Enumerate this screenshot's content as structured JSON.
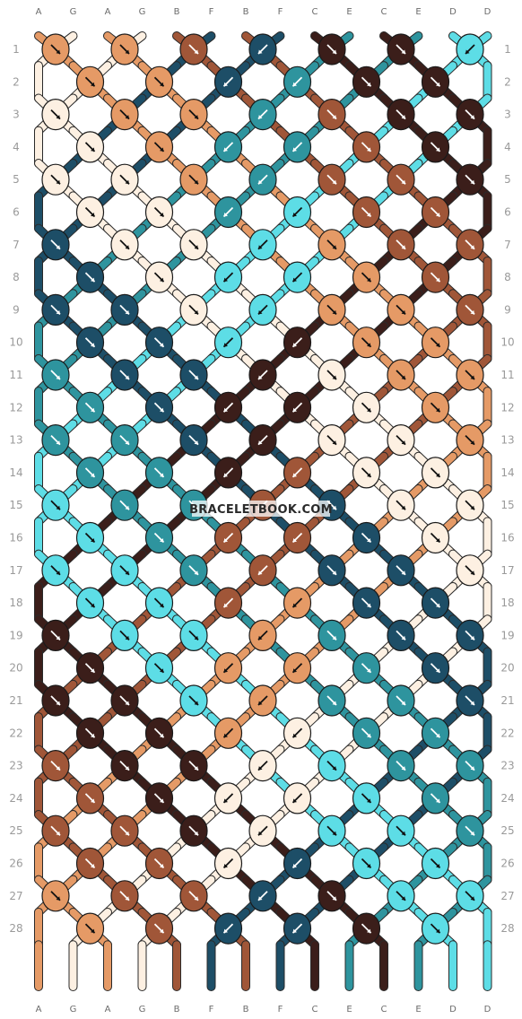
{
  "watermark": "BRACELETBOOK.COM",
  "colors": {
    "A": "#e59a66",
    "G": "#fdf0e2",
    "B": "#a05638",
    "F": "#1d4e67",
    "C": "#3b1e1a",
    "E": "#2e949e",
    "D": "#5ddde6"
  },
  "strands_top": [
    "A",
    "G",
    "A",
    "G",
    "B",
    "F",
    "B",
    "F",
    "C",
    "E",
    "C",
    "E",
    "D",
    "D"
  ],
  "strands_bottom": [
    "A",
    "G",
    "A",
    "G",
    "B",
    "F",
    "B",
    "F",
    "C",
    "E",
    "C",
    "E",
    "D",
    "D"
  ],
  "row_numbers": [
    "1",
    "2",
    "3",
    "4",
    "5",
    "6",
    "7",
    "8",
    "9",
    "10",
    "11",
    "12",
    "13",
    "14",
    "15",
    "16",
    "17",
    "18",
    "19",
    "20",
    "21",
    "22",
    "23",
    "24",
    "25",
    "26",
    "27",
    "28"
  ],
  "knot_rows": [
    [
      [
        "A",
        "r"
      ],
      [
        "A",
        "r"
      ],
      [
        "B",
        "r"
      ],
      [
        "F",
        "l"
      ],
      [
        "C",
        "r"
      ],
      [
        "C",
        "r"
      ],
      [
        "D",
        "l"
      ]
    ],
    [
      [
        "A",
        "r"
      ],
      [
        "A",
        "r"
      ],
      [
        "F",
        "l"
      ],
      [
        "E",
        "l"
      ],
      [
        "C",
        "r"
      ],
      [
        "C",
        "r"
      ]
    ],
    [
      [
        "G",
        "r"
      ],
      [
        "A",
        "r"
      ],
      [
        "A",
        "r"
      ],
      [
        "E",
        "l"
      ],
      [
        "B",
        "r"
      ],
      [
        "C",
        "r"
      ],
      [
        "C",
        "r"
      ]
    ],
    [
      [
        "G",
        "r"
      ],
      [
        "A",
        "r"
      ],
      [
        "E",
        "l"
      ],
      [
        "E",
        "l"
      ],
      [
        "B",
        "r"
      ],
      [
        "C",
        "r"
      ]
    ],
    [
      [
        "G",
        "r"
      ],
      [
        "G",
        "r"
      ],
      [
        "A",
        "r"
      ],
      [
        "E",
        "l"
      ],
      [
        "B",
        "r"
      ],
      [
        "B",
        "r"
      ],
      [
        "C",
        "r"
      ]
    ],
    [
      [
        "G",
        "r"
      ],
      [
        "G",
        "r"
      ],
      [
        "E",
        "l"
      ],
      [
        "D",
        "l"
      ],
      [
        "B",
        "r"
      ],
      [
        "B",
        "r"
      ]
    ],
    [
      [
        "F",
        "r"
      ],
      [
        "G",
        "r"
      ],
      [
        "G",
        "r"
      ],
      [
        "D",
        "l"
      ],
      [
        "A",
        "r"
      ],
      [
        "B",
        "r"
      ],
      [
        "B",
        "r"
      ]
    ],
    [
      [
        "F",
        "r"
      ],
      [
        "G",
        "r"
      ],
      [
        "D",
        "l"
      ],
      [
        "D",
        "l"
      ],
      [
        "A",
        "r"
      ],
      [
        "B",
        "r"
      ]
    ],
    [
      [
        "F",
        "r"
      ],
      [
        "F",
        "r"
      ],
      [
        "G",
        "r"
      ],
      [
        "D",
        "l"
      ],
      [
        "A",
        "r"
      ],
      [
        "A",
        "r"
      ],
      [
        "B",
        "r"
      ]
    ],
    [
      [
        "F",
        "r"
      ],
      [
        "F",
        "r"
      ],
      [
        "D",
        "l"
      ],
      [
        "C",
        "l"
      ],
      [
        "A",
        "r"
      ],
      [
        "A",
        "r"
      ]
    ],
    [
      [
        "E",
        "r"
      ],
      [
        "F",
        "r"
      ],
      [
        "F",
        "r"
      ],
      [
        "C",
        "l"
      ],
      [
        "G",
        "r"
      ],
      [
        "A",
        "r"
      ],
      [
        "A",
        "r"
      ]
    ],
    [
      [
        "E",
        "r"
      ],
      [
        "F",
        "r"
      ],
      [
        "C",
        "l"
      ],
      [
        "C",
        "l"
      ],
      [
        "G",
        "r"
      ],
      [
        "A",
        "r"
      ]
    ],
    [
      [
        "E",
        "r"
      ],
      [
        "E",
        "r"
      ],
      [
        "F",
        "r"
      ],
      [
        "C",
        "l"
      ],
      [
        "G",
        "r"
      ],
      [
        "G",
        "r"
      ],
      [
        "A",
        "r"
      ]
    ],
    [
      [
        "E",
        "r"
      ],
      [
        "E",
        "r"
      ],
      [
        "C",
        "l"
      ],
      [
        "B",
        "l"
      ],
      [
        "G",
        "r"
      ],
      [
        "G",
        "r"
      ]
    ],
    [
      [
        "D",
        "r"
      ],
      [
        "E",
        "r"
      ],
      [
        "E",
        "r"
      ],
      [
        "B",
        "l"
      ],
      [
        "F",
        "r"
      ],
      [
        "G",
        "r"
      ],
      [
        "G",
        "r"
      ]
    ],
    [
      [
        "D",
        "r"
      ],
      [
        "E",
        "r"
      ],
      [
        "B",
        "l"
      ],
      [
        "B",
        "l"
      ],
      [
        "F",
        "r"
      ],
      [
        "G",
        "r"
      ]
    ],
    [
      [
        "D",
        "r"
      ],
      [
        "D",
        "r"
      ],
      [
        "E",
        "r"
      ],
      [
        "B",
        "l"
      ],
      [
        "F",
        "r"
      ],
      [
        "F",
        "r"
      ],
      [
        "G",
        "r"
      ]
    ],
    [
      [
        "D",
        "r"
      ],
      [
        "D",
        "r"
      ],
      [
        "B",
        "l"
      ],
      [
        "A",
        "l"
      ],
      [
        "F",
        "r"
      ],
      [
        "F",
        "r"
      ]
    ],
    [
      [
        "C",
        "r"
      ],
      [
        "D",
        "r"
      ],
      [
        "D",
        "r"
      ],
      [
        "A",
        "l"
      ],
      [
        "E",
        "r"
      ],
      [
        "F",
        "r"
      ],
      [
        "F",
        "r"
      ]
    ],
    [
      [
        "C",
        "r"
      ],
      [
        "D",
        "r"
      ],
      [
        "A",
        "l"
      ],
      [
        "A",
        "l"
      ],
      [
        "E",
        "r"
      ],
      [
        "F",
        "r"
      ]
    ],
    [
      [
        "C",
        "r"
      ],
      [
        "C",
        "r"
      ],
      [
        "D",
        "r"
      ],
      [
        "A",
        "l"
      ],
      [
        "E",
        "r"
      ],
      [
        "E",
        "r"
      ],
      [
        "F",
        "r"
      ]
    ],
    [
      [
        "C",
        "r"
      ],
      [
        "C",
        "r"
      ],
      [
        "A",
        "l"
      ],
      [
        "G",
        "l"
      ],
      [
        "E",
        "r"
      ],
      [
        "E",
        "r"
      ]
    ],
    [
      [
        "B",
        "r"
      ],
      [
        "C",
        "r"
      ],
      [
        "C",
        "r"
      ],
      [
        "G",
        "l"
      ],
      [
        "D",
        "r"
      ],
      [
        "E",
        "r"
      ],
      [
        "E",
        "r"
      ]
    ],
    [
      [
        "B",
        "r"
      ],
      [
        "C",
        "r"
      ],
      [
        "G",
        "l"
      ],
      [
        "G",
        "l"
      ],
      [
        "D",
        "r"
      ],
      [
        "E",
        "r"
      ]
    ],
    [
      [
        "B",
        "r"
      ],
      [
        "B",
        "r"
      ],
      [
        "C",
        "r"
      ],
      [
        "G",
        "l"
      ],
      [
        "D",
        "r"
      ],
      [
        "D",
        "r"
      ],
      [
        "E",
        "r"
      ]
    ],
    [
      [
        "B",
        "r"
      ],
      [
        "B",
        "r"
      ],
      [
        "G",
        "l"
      ],
      [
        "F",
        "l"
      ],
      [
        "D",
        "r"
      ],
      [
        "D",
        "r"
      ]
    ],
    [
      [
        "A",
        "r"
      ],
      [
        "B",
        "r"
      ],
      [
        "B",
        "r"
      ],
      [
        "F",
        "l"
      ],
      [
        "C",
        "r"
      ],
      [
        "D",
        "r"
      ],
      [
        "D",
        "r"
      ]
    ],
    [
      [
        "A",
        "r"
      ],
      [
        "B",
        "r"
      ],
      [
        "F",
        "l"
      ],
      [
        "F",
        "l"
      ],
      [
        "C",
        "r"
      ],
      [
        "D",
        "r"
      ]
    ]
  ]
}
